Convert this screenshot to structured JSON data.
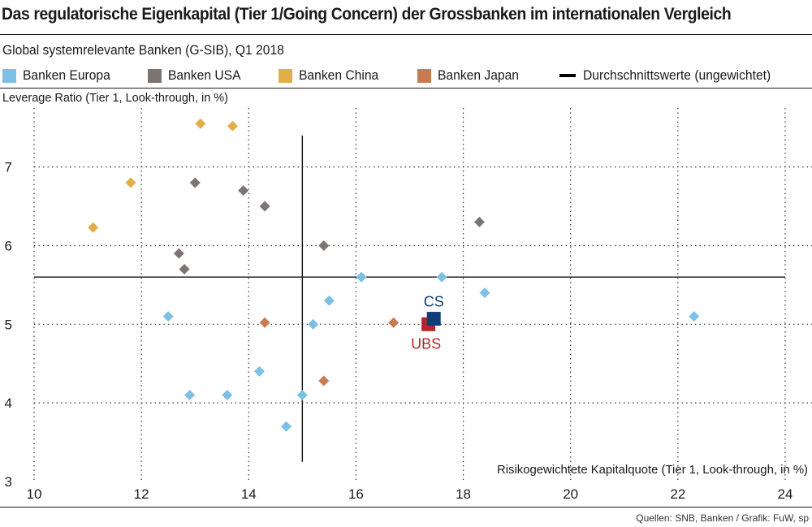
{
  "header": {
    "title": "Das regulatorische Eigenkapital (Tier 1/Going Concern) der Grossbanken im internationalen Vergleich",
    "subtitle": "Global systemrelevante Banken (G-SIB), Q1 2018"
  },
  "legend": {
    "items": [
      {
        "label": "Banken Europa",
        "color": "#7ec0e4"
      },
      {
        "label": "Banken USA",
        "color": "#7c7572"
      },
      {
        "label": "Banken China",
        "color": "#e3ad4a"
      },
      {
        "label": "Banken Japan",
        "color": "#c87a52"
      }
    ],
    "average_label": "Durchschnittswerte (ungewichtet)"
  },
  "chart_data": {
    "type": "scatter",
    "xlabel": "Risikogewichtete Kapitalquote (Tier 1, Look-through, in %)",
    "ylabel": "Leverage Ratio (Tier 1, Look-through, in %)",
    "xlim": [
      10,
      24.5
    ],
    "ylim": [
      3,
      7.75
    ],
    "xticks": [
      10,
      12,
      14,
      16,
      18,
      20,
      22,
      24
    ],
    "yticks": [
      3,
      4,
      5,
      6,
      7
    ],
    "grid": true,
    "average": {
      "x": 15.0,
      "y": 5.6
    },
    "series": [
      {
        "name": "Banken Europa",
        "color": "#7ec0e4",
        "points": [
          {
            "x": 12.5,
            "y": 5.1
          },
          {
            "x": 12.9,
            "y": 4.1
          },
          {
            "x": 13.6,
            "y": 4.1
          },
          {
            "x": 14.2,
            "y": 4.4
          },
          {
            "x": 14.7,
            "y": 3.7
          },
          {
            "x": 15.0,
            "y": 4.1
          },
          {
            "x": 15.2,
            "y": 5.0
          },
          {
            "x": 15.5,
            "y": 5.3
          },
          {
            "x": 16.1,
            "y": 5.6
          },
          {
            "x": 17.6,
            "y": 5.6
          },
          {
            "x": 18.4,
            "y": 5.4
          },
          {
            "x": 22.3,
            "y": 5.1
          }
        ]
      },
      {
        "name": "Banken USA",
        "color": "#7c7572",
        "points": [
          {
            "x": 12.7,
            "y": 5.9
          },
          {
            "x": 12.8,
            "y": 5.7
          },
          {
            "x": 13.0,
            "y": 6.8
          },
          {
            "x": 13.9,
            "y": 6.7
          },
          {
            "x": 14.3,
            "y": 6.5
          },
          {
            "x": 15.4,
            "y": 6.0
          },
          {
            "x": 18.3,
            "y": 6.3
          }
        ]
      },
      {
        "name": "Banken China",
        "color": "#e3ad4a",
        "points": [
          {
            "x": 11.1,
            "y": 6.23
          },
          {
            "x": 11.8,
            "y": 6.8
          },
          {
            "x": 13.1,
            "y": 7.55
          },
          {
            "x": 13.7,
            "y": 7.52
          }
        ]
      },
      {
        "name": "Banken Japan",
        "color": "#c87a52",
        "points": [
          {
            "x": 14.3,
            "y": 5.02
          },
          {
            "x": 15.4,
            "y": 4.28
          },
          {
            "x": 16.7,
            "y": 5.02
          }
        ]
      }
    ],
    "highlights": [
      {
        "label": "UBS",
        "x": 17.35,
        "y": 5.0,
        "color": "#b3262f",
        "label_position": "below"
      },
      {
        "label": "CS",
        "x": 17.45,
        "y": 5.07,
        "color": "#0e3d7a",
        "label_position": "above"
      }
    ]
  },
  "footer": {
    "source": "Quellen: SNB, Banken / Grafik: FuW, sp"
  }
}
